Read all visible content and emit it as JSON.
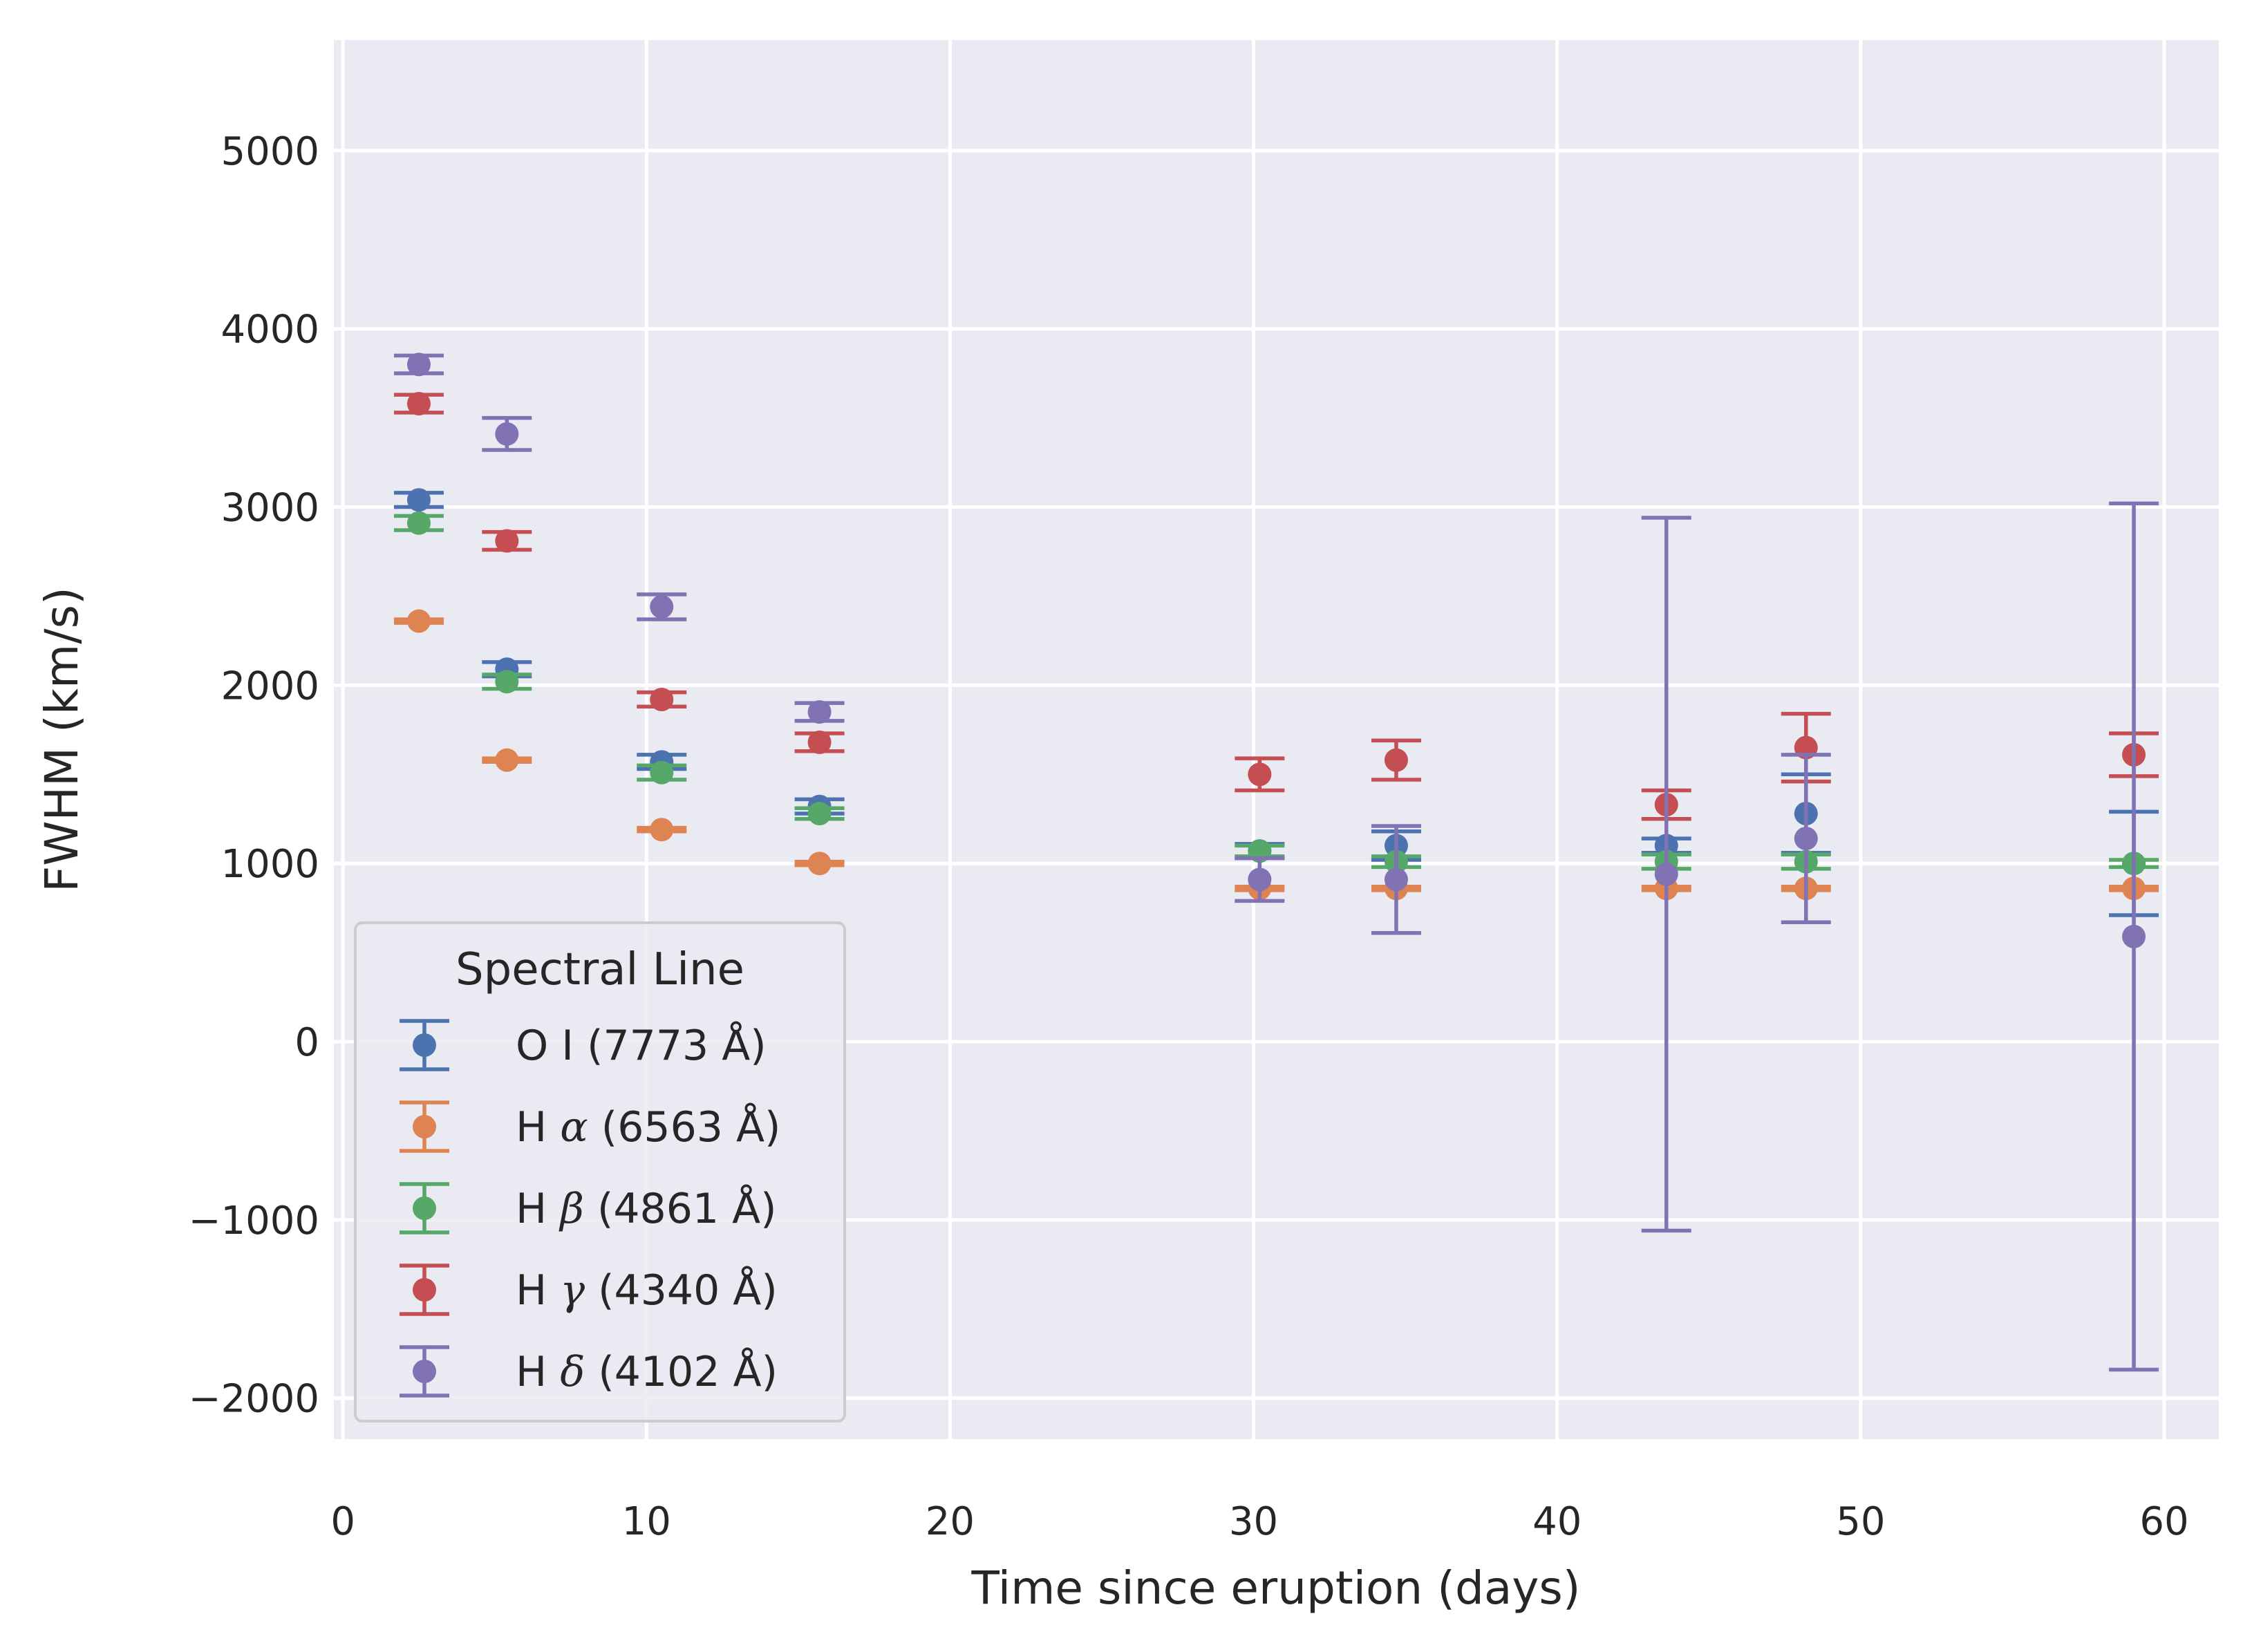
{
  "chart_data": {
    "type": "scatter",
    "xlabel": "Time since eruption (days)",
    "ylabel": "FWHM (km/s)",
    "xlim": [
      -0.3,
      61.8
    ],
    "ylim": [
      -2230,
      5620
    ],
    "x_ticks": [
      0,
      10,
      20,
      30,
      40,
      50,
      60
    ],
    "y_ticks": [
      -2000,
      -1000,
      0,
      1000,
      2000,
      3000,
      4000,
      5000
    ],
    "x_tick_labels": [
      "0",
      "10",
      "20",
      "30",
      "40",
      "50",
      "60"
    ],
    "y_tick_labels": [
      "−2000",
      "−1000",
      "0",
      "1000",
      "2000",
      "3000",
      "4000",
      "5000"
    ],
    "grid": true,
    "legend": {
      "title": "Spectral Line",
      "placement": "lower-left"
    },
    "series": [
      {
        "name": "O I (7773 Å)",
        "label_parts": [
          "O I (7773 Å)"
        ],
        "color": "#4c72b0",
        "x": [
          2.5,
          5.4,
          10.5,
          15.7,
          30.2,
          34.7,
          43.6,
          48.2,
          59.0
        ],
        "y": [
          3040,
          2090,
          1570,
          1320,
          1070,
          1100,
          1100,
          1280,
          1000
        ],
        "yerr": [
          40,
          40,
          40,
          40,
          40,
          80,
          40,
          220,
          290
        ]
      },
      {
        "name": "H α (6563 Å)",
        "label_parts": [
          "H ",
          "α",
          " (6563 Å)"
        ],
        "color": "#dd8452",
        "x": [
          2.5,
          5.4,
          10.5,
          15.7,
          30.2,
          34.7,
          43.6,
          48.2,
          59.0
        ],
        "y": [
          2360,
          1580,
          1190,
          1000,
          860,
          860,
          860,
          860,
          860
        ],
        "yerr": [
          10,
          10,
          10,
          10,
          10,
          10,
          10,
          10,
          10
        ]
      },
      {
        "name": "H β (4861 Å)",
        "label_parts": [
          "H ",
          "β",
          " (4861 Å)"
        ],
        "color": "#55a868",
        "x": [
          2.5,
          5.4,
          10.5,
          15.7,
          30.2,
          34.7,
          43.6,
          48.2,
          59.0
        ],
        "y": [
          2910,
          2020,
          1510,
          1280,
          1070,
          1010,
          1010,
          1010,
          1000
        ],
        "yerr": [
          40,
          40,
          40,
          30,
          30,
          30,
          40,
          40,
          20
        ]
      },
      {
        "name": "H γ (4340 Å)",
        "label_parts": [
          "H ",
          "γ",
          " (4340 Å)"
        ],
        "color": "#c44e52",
        "x": [
          2.5,
          5.4,
          10.5,
          15.7,
          30.2,
          34.7,
          43.6,
          48.2,
          59.0
        ],
        "y": [
          3580,
          2810,
          1920,
          1680,
          1500,
          1580,
          1330,
          1650,
          1610
        ],
        "yerr": [
          50,
          50,
          40,
          50,
          90,
          110,
          80,
          190,
          120
        ]
      },
      {
        "name": "H δ (4102 Å)",
        "label_parts": [
          "H ",
          "δ",
          " (4102 Å)"
        ],
        "color": "#8172b3",
        "x": [
          2.5,
          5.4,
          10.5,
          15.7,
          30.2,
          34.7,
          43.6,
          48.2,
          59.0
        ],
        "y": [
          3800,
          3410,
          2440,
          1850,
          910,
          910,
          940,
          1140,
          590
        ],
        "yerr": [
          50,
          90,
          70,
          50,
          120,
          300,
          2000,
          470,
          2430
        ]
      }
    ]
  }
}
